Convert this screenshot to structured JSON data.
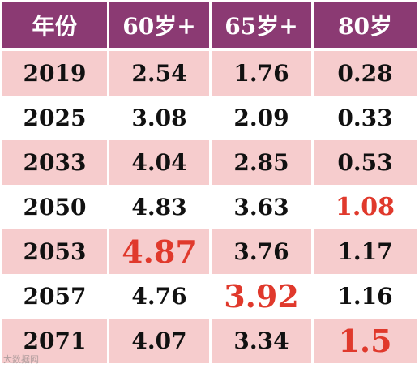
{
  "chart_data": {
    "type": "table",
    "columns": [
      "年份",
      "60岁+",
      "65岁+",
      "80岁"
    ],
    "rows": [
      {
        "year": "2019",
        "v60": "2.54",
        "v65": "1.76",
        "v80": "0.28"
      },
      {
        "year": "2025",
        "v60": "3.08",
        "v65": "2.09",
        "v80": "0.33"
      },
      {
        "year": "2033",
        "v60": "4.04",
        "v65": "2.85",
        "v80": "0.53"
      },
      {
        "year": "2050",
        "v60": "4.83",
        "v65": "3.63",
        "v80": "1.08"
      },
      {
        "year": "2053",
        "v60": "4.87",
        "v65": "3.76",
        "v80": "1.17"
      },
      {
        "year": "2057",
        "v60": "4.76",
        "v65": "3.92",
        "v80": "1.16"
      },
      {
        "year": "2071",
        "v60": "4.07",
        "v65": "3.34",
        "v80": "1.5"
      }
    ],
    "highlighted_cells": [
      {
        "row": 3,
        "col": "v80"
      },
      {
        "row": 4,
        "col": "v60"
      },
      {
        "row": 5,
        "col": "v65"
      },
      {
        "row": 6,
        "col": "v80"
      }
    ]
  },
  "colors": {
    "header_bg": "#8b3a73",
    "pink_row": "#f6cccd",
    "highlight_text": "#e0392c"
  },
  "watermark": "大数据网"
}
